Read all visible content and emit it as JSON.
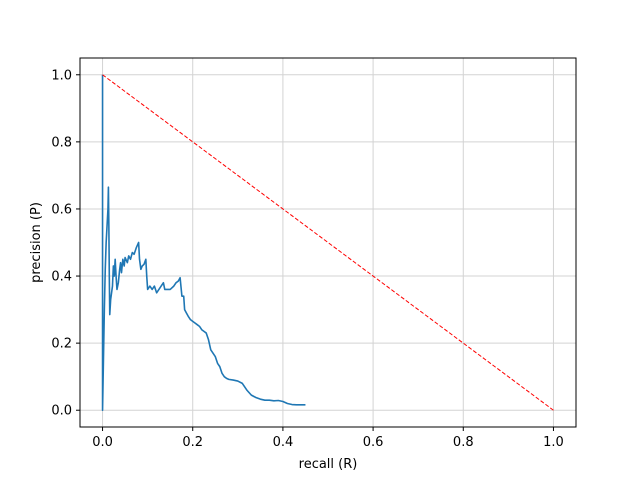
{
  "chart_data": {
    "type": "line",
    "xlabel": "recall (R)",
    "ylabel": "precision (P)",
    "xlim": [
      -0.05,
      1.05
    ],
    "ylim": [
      -0.05,
      1.05
    ],
    "grid": true,
    "xticks": [
      0.0,
      0.2,
      0.4,
      0.6,
      0.8,
      1.0
    ],
    "yticks": [
      0.0,
      0.2,
      0.4,
      0.6,
      0.8,
      1.0
    ],
    "xtick_labels": [
      "0.0",
      "0.2",
      "0.4",
      "0.6",
      "0.8",
      "1.0"
    ],
    "ytick_labels": [
      "0.0",
      "0.2",
      "0.4",
      "0.6",
      "0.8",
      "1.0"
    ],
    "series": [
      {
        "color": "#1f77b4",
        "style": "solid",
        "points": [
          [
            0.0,
            1.0
          ],
          [
            0.0,
            0.0
          ],
          [
            0.002,
            0.15
          ],
          [
            0.004,
            0.3
          ],
          [
            0.006,
            0.42
          ],
          [
            0.008,
            0.5
          ],
          [
            0.012,
            0.6
          ],
          [
            0.013,
            0.665
          ],
          [
            0.014,
            0.55
          ],
          [
            0.015,
            0.4
          ],
          [
            0.016,
            0.285
          ],
          [
            0.018,
            0.33
          ],
          [
            0.022,
            0.37
          ],
          [
            0.024,
            0.43
          ],
          [
            0.026,
            0.4
          ],
          [
            0.028,
            0.45
          ],
          [
            0.03,
            0.4
          ],
          [
            0.032,
            0.36
          ],
          [
            0.035,
            0.38
          ],
          [
            0.038,
            0.42
          ],
          [
            0.04,
            0.44
          ],
          [
            0.042,
            0.41
          ],
          [
            0.045,
            0.45
          ],
          [
            0.048,
            0.43
          ],
          [
            0.05,
            0.455
          ],
          [
            0.055,
            0.44
          ],
          [
            0.058,
            0.46
          ],
          [
            0.062,
            0.45
          ],
          [
            0.066,
            0.47
          ],
          [
            0.07,
            0.465
          ],
          [
            0.075,
            0.485
          ],
          [
            0.08,
            0.5
          ],
          [
            0.082,
            0.45
          ],
          [
            0.085,
            0.42
          ],
          [
            0.088,
            0.43
          ],
          [
            0.092,
            0.435
          ],
          [
            0.096,
            0.45
          ],
          [
            0.098,
            0.4
          ],
          [
            0.1,
            0.36
          ],
          [
            0.105,
            0.37
          ],
          [
            0.11,
            0.36
          ],
          [
            0.115,
            0.37
          ],
          [
            0.12,
            0.35
          ],
          [
            0.125,
            0.36
          ],
          [
            0.13,
            0.37
          ],
          [
            0.135,
            0.38
          ],
          [
            0.138,
            0.36
          ],
          [
            0.142,
            0.36
          ],
          [
            0.15,
            0.36
          ],
          [
            0.158,
            0.37
          ],
          [
            0.163,
            0.38
          ],
          [
            0.168,
            0.385
          ],
          [
            0.172,
            0.395
          ],
          [
            0.176,
            0.34
          ],
          [
            0.18,
            0.34
          ],
          [
            0.182,
            0.3
          ],
          [
            0.186,
            0.29
          ],
          [
            0.19,
            0.28
          ],
          [
            0.195,
            0.27
          ],
          [
            0.2,
            0.265
          ],
          [
            0.205,
            0.26
          ],
          [
            0.21,
            0.255
          ],
          [
            0.215,
            0.25
          ],
          [
            0.22,
            0.24
          ],
          [
            0.225,
            0.235
          ],
          [
            0.23,
            0.23
          ],
          [
            0.235,
            0.21
          ],
          [
            0.24,
            0.18
          ],
          [
            0.245,
            0.17
          ],
          [
            0.25,
            0.16
          ],
          [
            0.255,
            0.14
          ],
          [
            0.26,
            0.13
          ],
          [
            0.265,
            0.11
          ],
          [
            0.27,
            0.1
          ],
          [
            0.275,
            0.095
          ],
          [
            0.28,
            0.092
          ],
          [
            0.29,
            0.09
          ],
          [
            0.3,
            0.087
          ],
          [
            0.31,
            0.08
          ],
          [
            0.32,
            0.06
          ],
          [
            0.33,
            0.045
          ],
          [
            0.34,
            0.038
          ],
          [
            0.35,
            0.033
          ],
          [
            0.36,
            0.03
          ],
          [
            0.37,
            0.03
          ],
          [
            0.38,
            0.028
          ],
          [
            0.39,
            0.029
          ],
          [
            0.4,
            0.026
          ],
          [
            0.41,
            0.02
          ],
          [
            0.42,
            0.017
          ],
          [
            0.43,
            0.016
          ],
          [
            0.44,
            0.016
          ],
          [
            0.45,
            0.016
          ]
        ]
      },
      {
        "color": "#ff0000",
        "style": "dashed",
        "points": [
          [
            0.0,
            1.0
          ],
          [
            1.0,
            0.0
          ]
        ]
      }
    ]
  }
}
